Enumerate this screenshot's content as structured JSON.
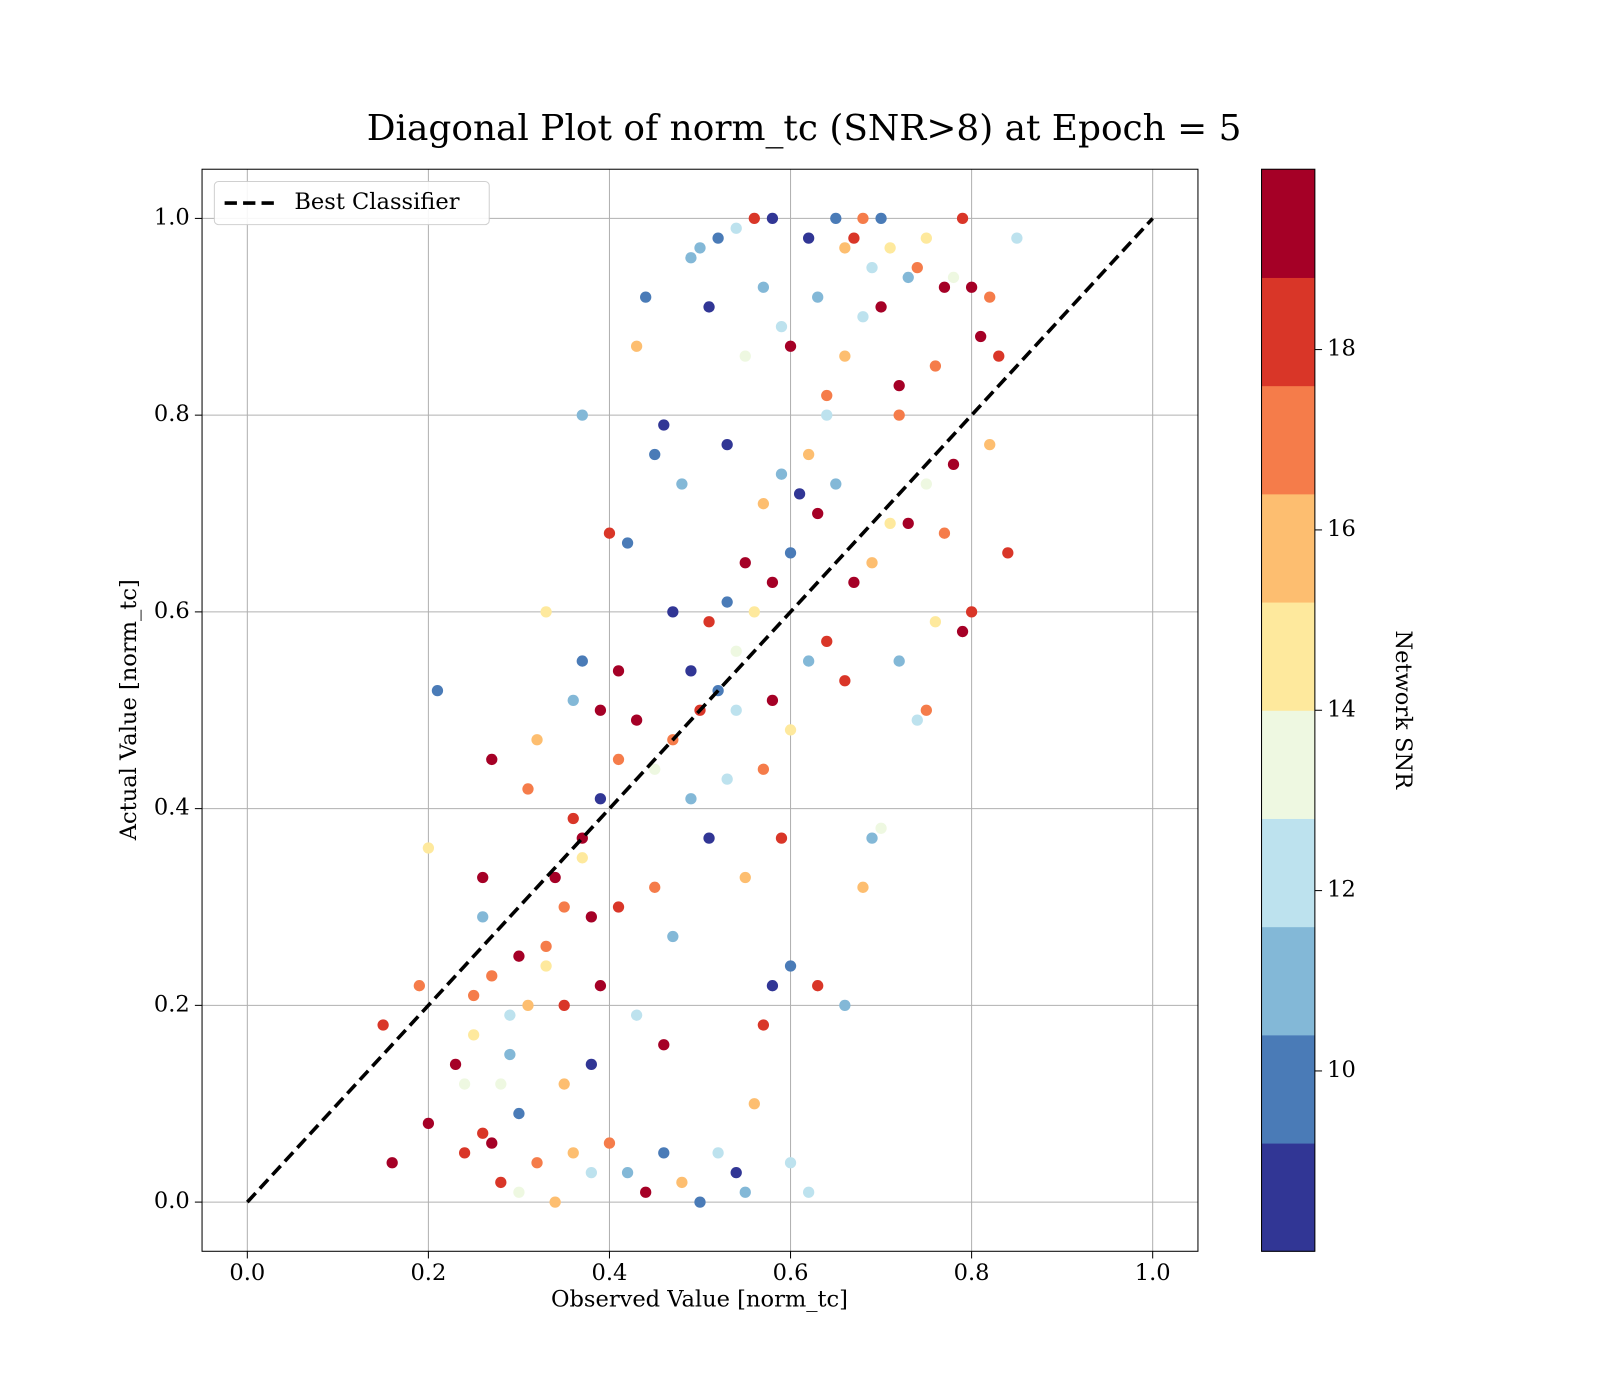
{
  "chart_data": {
    "type": "scatter",
    "title": "Diagonal Plot of norm_tc (SNR>8) at Epoch = 5",
    "x_label": "Observed Value [norm_tc]",
    "y_label": "Actual Value [norm_tc]",
    "xlim": [
      -0.05,
      1.05
    ],
    "ylim": [
      -0.05,
      1.05
    ],
    "xticks": [
      {
        "value": 0,
        "label": "0.0"
      },
      0.2,
      0.4,
      0.6,
      0.8,
      {
        "value": 1,
        "label": "1.0"
      }
    ],
    "yticks": [
      {
        "value": 0,
        "label": "0.0"
      },
      0.2,
      0.4,
      0.6,
      0.8,
      {
        "value": 1,
        "label": "1.0"
      }
    ],
    "grid": true,
    "legend": "upper left",
    "reference_line": {
      "name": "Best Classifier",
      "color": "#000000",
      "x": [
        0,
        1
      ],
      "y": [
        0,
        1
      ]
    },
    "colorbar": {
      "label": "Network SNR",
      "lim": [
        8,
        20
      ],
      "ticks": [
        10,
        12,
        14,
        16,
        18
      ],
      "colors": [
        "#313695",
        "#4a7bb7",
        "#83b8d7",
        "#bde2ee",
        "#eef8e1",
        "#fee99d",
        "#fdbe70",
        "#f57c4a",
        "#d93628",
        "#a50026"
      ]
    },
    "x": [
      0.16,
      0.15,
      0.19,
      0.2,
      0.21,
      0.2,
      0.23,
      0.24,
      0.25,
      0.26,
      0.27,
      0.26,
      0.27,
      0.28,
      0.29,
      0.3,
      0.31,
      0.32,
      0.33,
      0.3,
      0.34,
      0.35,
      0.36,
      0.37,
      0.37,
      0.36,
      0.38,
      0.38,
      0.39,
      0.4,
      0.41,
      0.42,
      0.43,
      0.44,
      0.45,
      0.46,
      0.47,
      0.48,
      0.49,
      0.5,
      0.51,
      0.52,
      0.53,
      0.54,
      0.55,
      0.56,
      0.57,
      0.58,
      0.59,
      0.6,
      0.62,
      0.63,
      0.64,
      0.65,
      0.66,
      0.67,
      0.68,
      0.69,
      0.7,
      0.71,
      0.72,
      0.73,
      0.74,
      0.75,
      0.76,
      0.77,
      0.78,
      0.79,
      0.8,
      0.81,
      0.82,
      0.83,
      0.84,
      0.85,
      0.82,
      0.8,
      0.79,
      0.78,
      0.76,
      0.75,
      0.74,
      0.72,
      0.7,
      0.69,
      0.68,
      0.66,
      0.63,
      0.62,
      0.6,
      0.6,
      0.59,
      0.58,
      0.57,
      0.56,
      0.55,
      0.54,
      0.52,
      0.5,
      0.48,
      0.46,
      0.44,
      0.42,
      0.4,
      0.38,
      0.36,
      0.34,
      0.32,
      0.3,
      0.28,
      0.26,
      0.25,
      0.24,
      0.33,
      0.35,
      0.37,
      0.39,
      0.41,
      0.43,
      0.45,
      0.47,
      0.49,
      0.51,
      0.53,
      0.55,
      0.57,
      0.58,
      0.6,
      0.62,
      0.64,
      0.66,
      0.67,
      0.69,
      0.71,
      0.73,
      0.75,
      0.77,
      0.65,
      0.63,
      0.61,
      0.59,
      0.57,
      0.55,
      0.53,
      0.51,
      0.49,
      0.47,
      0.45,
      0.43,
      0.41,
      0.39,
      0.37,
      0.35,
      0.33,
      0.31,
      0.29,
      0.27,
      0.5,
      0.52,
      0.54,
      0.56,
      0.58,
      0.6,
      0.62,
      0.64,
      0.66,
      0.68,
      0.7,
      0.72,
      0.54,
      0.46
    ],
    "values": [
      0.04,
      0.18,
      0.22,
      0.08,
      0.52,
      0.36,
      0.14,
      0.05,
      0.21,
      0.33,
      0.45,
      0.29,
      0.06,
      0.12,
      0.15,
      0.25,
      0.42,
      0.47,
      0.6,
      0.09,
      0.33,
      0.2,
      0.39,
      0.8,
      0.55,
      0.51,
      0.29,
      0.14,
      0.5,
      0.68,
      0.54,
      0.67,
      0.87,
      0.92,
      0.76,
      0.79,
      0.6,
      0.73,
      0.96,
      0.97,
      0.91,
      0.98,
      0.77,
      0.99,
      0.86,
      1.0,
      0.93,
      1.0,
      0.89,
      0.87,
      0.98,
      0.92,
      0.82,
      1.0,
      0.97,
      0.98,
      1.0,
      0.95,
      1.0,
      0.97,
      0.83,
      0.94,
      0.95,
      0.98,
      0.85,
      0.93,
      0.94,
      1.0,
      0.93,
      0.88,
      0.92,
      0.86,
      0.66,
      0.98,
      0.77,
      0.6,
      0.58,
      0.75,
      0.59,
      0.5,
      0.49,
      0.55,
      0.38,
      0.37,
      0.32,
      0.2,
      0.22,
      0.01,
      0.04,
      0.24,
      0.37,
      0.22,
      0.18,
      0.1,
      0.01,
      0.03,
      0.05,
      0.0,
      0.02,
      0.05,
      0.01,
      0.03,
      0.06,
      0.03,
      0.05,
      0.0,
      0.04,
      0.01,
      0.02,
      0.07,
      0.17,
      0.12,
      0.26,
      0.12,
      0.35,
      0.22,
      0.3,
      0.19,
      0.32,
      0.27,
      0.41,
      0.37,
      0.43,
      0.33,
      0.44,
      0.51,
      0.48,
      0.55,
      0.57,
      0.53,
      0.63,
      0.65,
      0.69,
      0.69,
      0.73,
      0.68,
      0.73,
      0.7,
      0.72,
      0.74,
      0.71,
      0.65,
      0.61,
      0.59,
      0.54,
      0.47,
      0.44,
      0.49,
      0.45,
      0.41,
      0.37,
      0.3,
      0.24,
      0.2,
      0.19,
      0.23,
      0.5,
      0.52,
      0.56,
      0.6,
      0.63,
      0.66,
      0.76,
      0.8,
      0.86,
      0.9,
      0.91,
      0.8,
      0.5,
      0.16
    ],
    "color_values": [
      19.5,
      18.5,
      17.5,
      19.2,
      10.2,
      14.5,
      19.5,
      18.5,
      17.2,
      19.5,
      19.3,
      10.5,
      18.8,
      13.2,
      11.2,
      19.5,
      17.5,
      15.2,
      14.8,
      9.8,
      19.6,
      17.8,
      18.5,
      11.2,
      9.8,
      11.0,
      19.4,
      8.5,
      19.6,
      18.6,
      19.5,
      10.0,
      16.0,
      9.6,
      10.0,
      8.5,
      8.8,
      11.5,
      10.5,
      11.5,
      8.5,
      9.6,
      8.5,
      12.2,
      13.0,
      18.2,
      10.8,
      8.5,
      12.0,
      19.5,
      8.8,
      10.5,
      17.5,
      9.8,
      16.2,
      17.8,
      17.0,
      12.5,
      9.6,
      14.5,
      19.5,
      10.5,
      17.2,
      15.0,
      16.5,
      19.2,
      13.0,
      18.2,
      19.6,
      19.4,
      17.5,
      18.6,
      18.5,
      12.4,
      16.0,
      18.4,
      19.6,
      19.5,
      15.0,
      16.5,
      12.2,
      10.8,
      13.2,
      11.2,
      15.8,
      11.2,
      18.2,
      12.2,
      12.2,
      9.6,
      18.6,
      9.0,
      18.0,
      16.0,
      11.0,
      8.5,
      12.4,
      10.0,
      15.8,
      9.8,
      19.5,
      10.8,
      17.5,
      11.8,
      15.5,
      16.2,
      17.0,
      13.5,
      18.0,
      18.2,
      14.5,
      13.0,
      17.0,
      16.0,
      15.0,
      19.0,
      18.6,
      12.2,
      17.0,
      11.0,
      10.5,
      9.0,
      12.2,
      15.5,
      17.4,
      19.0,
      14.0,
      10.6,
      18.6,
      17.8,
      19.4,
      16.2,
      14.5,
      19.2,
      13.2,
      16.8,
      11.5,
      19.5,
      8.8,
      10.5,
      16.0,
      19.5,
      9.6,
      18.4,
      9.2,
      17.0,
      13.0,
      19.6,
      16.6,
      8.5,
      18.8,
      17.2,
      14.5,
      15.8,
      12.5,
      16.5,
      18.0,
      10.2,
      12.8,
      14.8,
      19.7,
      9.4,
      15.5,
      11.8,
      16.4,
      12.0,
      19.4,
      17.2,
      11.6,
      18.8
    ]
  }
}
